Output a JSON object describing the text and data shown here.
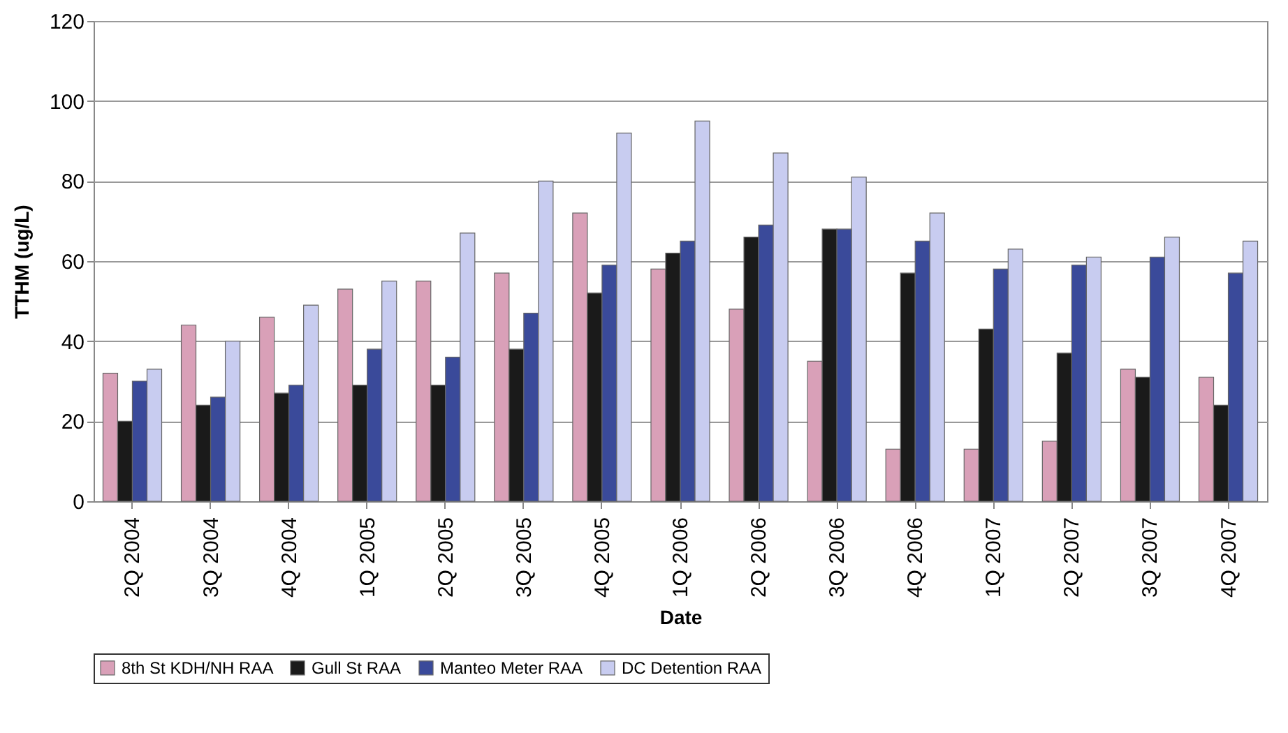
{
  "chart_data": {
    "type": "bar",
    "xlabel": "Date",
    "ylabel": "TTHM (ug/L)",
    "categories": [
      "2Q 2004",
      "3Q 2004",
      "4Q 2004",
      "1Q 2005",
      "2Q 2005",
      "3Q 2005",
      "4Q 2005",
      "1Q 2006",
      "2Q 2006",
      "3Q 2006",
      "4Q 2006",
      "1Q 2007",
      "2Q 2007",
      "3Q 2007",
      "4Q 2007"
    ],
    "series": [
      {
        "name": "8th St KDH/NH RAA",
        "color": "#d9a0b8",
        "values": [
          32,
          44,
          46,
          53,
          55,
          57,
          72,
          58,
          48,
          35,
          13,
          13,
          15,
          33,
          31
        ]
      },
      {
        "name": "Gull St RAA",
        "color": "#1a1a1a",
        "values": [
          20,
          24,
          27,
          29,
          29,
          38,
          52,
          62,
          66,
          68,
          57,
          43,
          37,
          31,
          24
        ]
      },
      {
        "name": "Manteo Meter RAA",
        "color": "#3a4a9a",
        "values": [
          30,
          26,
          29,
          38,
          36,
          47,
          59,
          65,
          69,
          68,
          65,
          58,
          59,
          61,
          57
        ]
      },
      {
        "name": "DC Detention RAA",
        "color": "#c8ccf0",
        "values": [
          33,
          40,
          49,
          55,
          67,
          80,
          92,
          95,
          87,
          81,
          72,
          63,
          61,
          66,
          65
        ]
      }
    ],
    "ylim": [
      0,
      120
    ],
    "yticks": [
      0,
      20,
      40,
      60,
      80,
      100,
      120
    ],
    "grid": "y",
    "legend": "bottom"
  }
}
